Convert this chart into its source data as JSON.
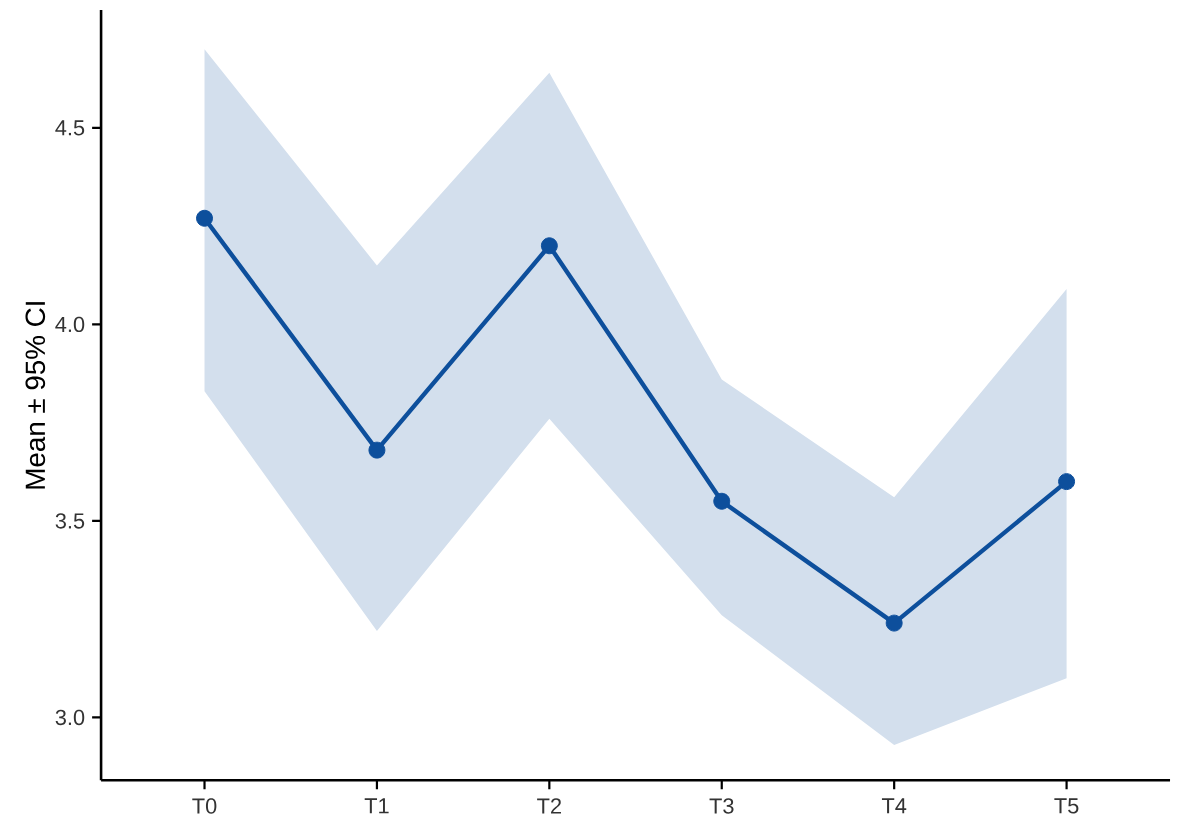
{
  "chart_data": {
    "type": "line",
    "ylabel": "Mean ± 95% CI",
    "categories": [
      "T0",
      "T1",
      "T2",
      "T3",
      "T4",
      "T5"
    ],
    "series": [
      {
        "color": "#0d4f9c",
        "values": [
          4.27,
          3.68,
          4.2,
          3.55,
          3.24,
          3.6
        ],
        "lower": [
          3.83,
          3.22,
          3.76,
          3.26,
          2.93,
          3.1
        ],
        "upper": [
          4.7,
          4.15,
          4.64,
          3.86,
          3.56,
          4.09
        ]
      }
    ],
    "ylim": [
      2.84,
      4.8
    ],
    "yticks": [
      {
        "value": 3,
        "label": "3.0"
      },
      {
        "value": 3.5,
        "label": "3.5"
      },
      {
        "value": 4,
        "label": "4.0"
      },
      {
        "value": 4.5,
        "label": "4.5"
      }
    ],
    "marker": "circle",
    "line_style": "solid"
  }
}
